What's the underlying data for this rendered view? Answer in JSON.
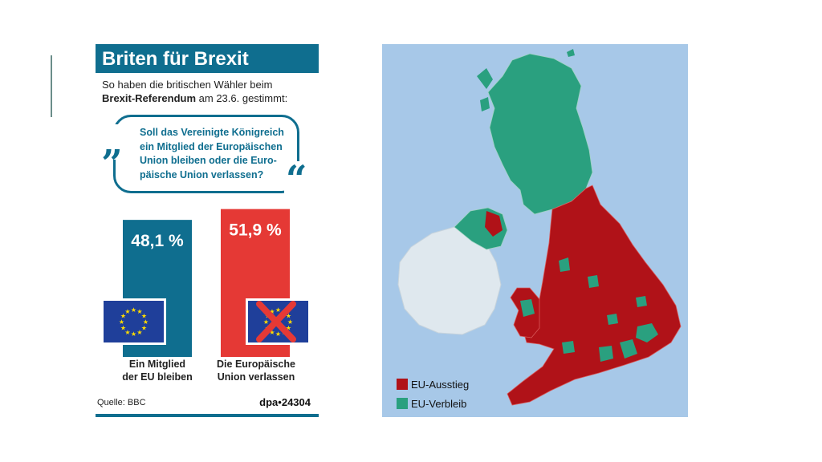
{
  "infographic": {
    "title": "Briten für Brexit",
    "subtitle_line1": "So haben die britischen Wähler beim",
    "subtitle_bold": "Brexit-Referendum",
    "subtitle_rest": " am 23.6. gestimmt:",
    "question": "Soll das Vereinigte Königreich ein Mitglied der Europäischen Union bleiben oder die Euro- päische Union verlassen?",
    "quote_open": "„",
    "quote_close": "“",
    "source": "Quelle: BBC",
    "agency": "dpa•24304"
  },
  "chart_data": {
    "type": "bar",
    "categories": [
      "Ein Mitglied der EU bleiben",
      "Die Europäische Union verlassen"
    ],
    "category_lines": [
      [
        "Ein Mitglied",
        "der EU bleiben"
      ],
      [
        "Die Europäische",
        "Union verlassen"
      ]
    ],
    "values": [
      48.1,
      51.9
    ],
    "value_labels": [
      "48,1 %",
      "51,9 %"
    ],
    "colors": [
      "#0f6e8f",
      "#e53935"
    ],
    "unit": "%",
    "ylim": [
      0,
      55
    ]
  },
  "map": {
    "legend": [
      {
        "label": "EU-Ausstieg",
        "color": "#b01218"
      },
      {
        "label": "EU-Verbleib",
        "color": "#2aa07f"
      }
    ],
    "sea_color": "#a7c8e8",
    "ireland_color": "#dfe8ee"
  }
}
